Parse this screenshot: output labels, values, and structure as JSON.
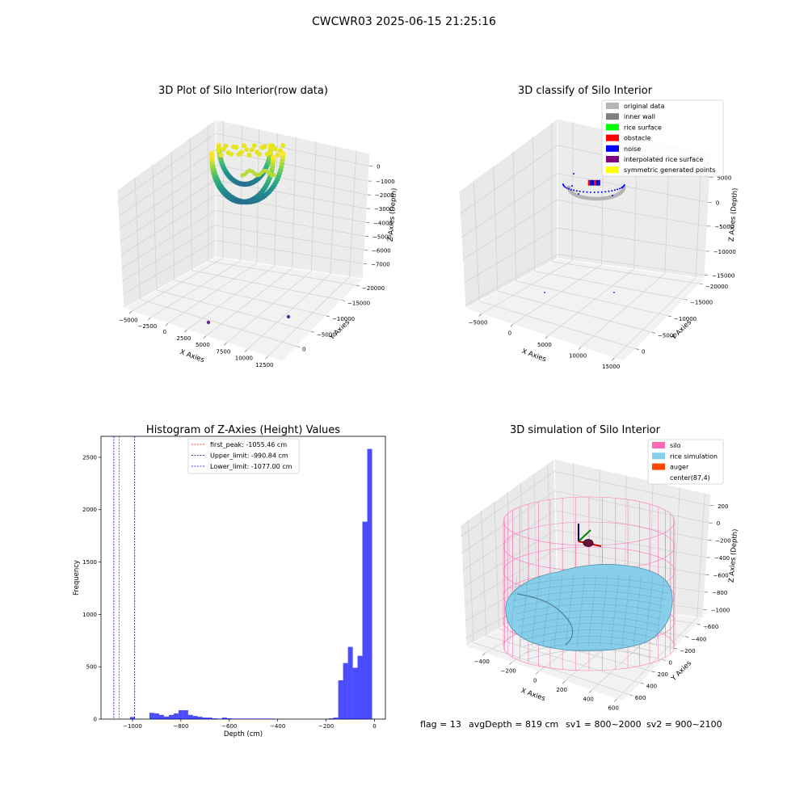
{
  "page": {
    "suptitle": "CWCWR03 2025-06-15 21:25:16",
    "footer": {
      "flag": "flag = 13",
      "avg": "avgDepth = 819 cm",
      "sv1": "sv1 = 800~2000",
      "sv2": "sv2 = 900~2100"
    }
  },
  "panels": {
    "raw": {
      "title": "3D Plot of Silo Interior(row data)",
      "xlabel": "X Axies",
      "ylabel": "Y Axies",
      "zlabel": "Z Axies (Depth)",
      "xticks": [
        "−5000",
        "−2500",
        "0",
        "2500",
        "5000",
        "7500",
        "10000",
        "12500"
      ],
      "yticks": [
        "0",
        "−5000",
        "−10000",
        "−15000",
        "−20000"
      ],
      "zticks": [
        "0",
        "−1000",
        "−2000",
        "−3000",
        "−4000",
        "−5000",
        "−6000",
        "−7000"
      ]
    },
    "classify": {
      "title": "3D classify of Silo Interior",
      "xlabel": "X Axies",
      "ylabel": "Y Axies",
      "zlabel": "Z Axies (Depth)",
      "xticks": [
        "−5000",
        "0",
        "5000",
        "10000",
        "15000"
      ],
      "yticks": [
        "0",
        "−5000",
        "−10000",
        "−15000",
        "−20000"
      ],
      "zticks": [
        "5000",
        "0",
        "−5000",
        "−10000",
        "−15000"
      ],
      "legend": [
        {
          "label": "original data",
          "color": "#b4b4b4"
        },
        {
          "label": "inner wall",
          "color": "#808080"
        },
        {
          "label": "rice surface",
          "color": "#00ff00"
        },
        {
          "label": "obstacle",
          "color": "#ff0000"
        },
        {
          "label": "noise",
          "color": "#0000ff"
        },
        {
          "label": "interpolated rice surface",
          "color": "#800080"
        },
        {
          "label": "symmetric generated points",
          "color": "#ffff00"
        }
      ]
    },
    "sim": {
      "title": "3D simulation of Silo Interior",
      "xlabel": "X Axies",
      "ylabel": "Y Axies",
      "zlabel": "Z Axies (Depth)",
      "xticks": [
        "−400",
        "−200",
        "0",
        "200",
        "400",
        "600"
      ],
      "yticks": [
        "600",
        "400",
        "200",
        "0",
        "−200",
        "−400",
        "−600"
      ],
      "zticks": [
        "200",
        "0",
        "−200",
        "−400",
        "−600",
        "−800",
        "−1000"
      ],
      "legend": [
        {
          "label": "silo",
          "color": "#ff69b4"
        },
        {
          "label": "rice simulation",
          "color": "#87ceeb"
        },
        {
          "label": "auger",
          "color": "#ff4500"
        },
        {
          "label": "center(87,4)",
          "color": "#ffffff"
        }
      ]
    }
  },
  "chart_data": [
    {
      "type": "scatter",
      "title": "3D Plot of Silo Interior(row data)",
      "xlabel": "X Axies",
      "ylabel": "Y Axies",
      "zlabel": "Z Axies (Depth)",
      "xlim": [
        -5000,
        13000
      ],
      "ylim": [
        -20000,
        1000
      ],
      "zlim": [
        -7500,
        500
      ],
      "colormap": "viridis (by depth)",
      "series": [
        {
          "points": [
            {
              "x": 0,
              "y": -2000,
              "z": -1500
            },
            {
              "x": 5000,
              "y": -2000,
              "z": -1500
            },
            {
              "x": 2500,
              "y": -2000,
              "z": -4500
            },
            {
              "x": 7000,
              "y": -20000,
              "z": -7500
            },
            {
              "x": 10000,
              "y": -10000,
              "z": -7500
            }
          ]
        }
      ]
    },
    {
      "type": "scatter",
      "title": "3D classify of Silo Interior",
      "xlabel": "X Axies",
      "ylabel": "Y Axies",
      "zlabel": "Z Axies (Depth)",
      "xlim": [
        -7000,
        16000
      ],
      "ylim": [
        -20000,
        1000
      ],
      "zlim": [
        -15000,
        5000
      ],
      "series": [
        {
          "name": "original data",
          "points": [
            {
              "x": 0,
              "y": -2000,
              "z": -1500
            }
          ]
        },
        {
          "name": "obstacle",
          "points": [
            {
              "x": 2500,
              "y": -2500,
              "z": -300
            }
          ]
        },
        {
          "name": "noise",
          "points": [
            {
              "x": 2500,
              "y": -2500,
              "z": -300
            },
            {
              "x": 6000,
              "y": -18000,
              "z": -15000
            },
            {
              "x": 13000,
              "y": -8000,
              "z": -15000
            }
          ]
        }
      ]
    },
    {
      "type": "bar",
      "title": "Histogram of Z-Axies (Height) Values",
      "xlabel": "Depth (cm)",
      "ylabel": "Frequency",
      "xlim": [
        -1130,
        45
      ],
      "ylim": [
        0,
        2700
      ],
      "xticks": [
        "−1000",
        "−800",
        "−600",
        "−400",
        "−200",
        "0"
      ],
      "yticks": [
        "0",
        "500",
        "1000",
        "1500",
        "2000",
        "2500"
      ],
      "bin_width": 20,
      "bins": [
        {
          "x": -1000,
          "y": 20
        },
        {
          "x": -980,
          "y": 2
        },
        {
          "x": -960,
          "y": 0
        },
        {
          "x": -940,
          "y": 0
        },
        {
          "x": -920,
          "y": 60
        },
        {
          "x": -900,
          "y": 55
        },
        {
          "x": -880,
          "y": 40
        },
        {
          "x": -860,
          "y": 25
        },
        {
          "x": -840,
          "y": 40
        },
        {
          "x": -820,
          "y": 55
        },
        {
          "x": -800,
          "y": 85
        },
        {
          "x": -780,
          "y": 85
        },
        {
          "x": -760,
          "y": 40
        },
        {
          "x": -740,
          "y": 30
        },
        {
          "x": -720,
          "y": 22
        },
        {
          "x": -700,
          "y": 15
        },
        {
          "x": -680,
          "y": 15
        },
        {
          "x": -660,
          "y": 8
        },
        {
          "x": -640,
          "y": 5
        },
        {
          "x": -620,
          "y": 15
        },
        {
          "x": -600,
          "y": 8
        },
        {
          "x": -580,
          "y": 5
        },
        {
          "x": -560,
          "y": 5
        },
        {
          "x": -540,
          "y": 5
        },
        {
          "x": -520,
          "y": 5
        },
        {
          "x": -500,
          "y": 5
        },
        {
          "x": -480,
          "y": 5
        },
        {
          "x": -460,
          "y": 5
        },
        {
          "x": -440,
          "y": 5
        },
        {
          "x": -420,
          "y": 5
        },
        {
          "x": -180,
          "y": 8
        },
        {
          "x": -160,
          "y": 15
        },
        {
          "x": -140,
          "y": 370
        },
        {
          "x": -120,
          "y": 535
        },
        {
          "x": -100,
          "y": 690
        },
        {
          "x": -80,
          "y": 490
        },
        {
          "x": -60,
          "y": 605
        },
        {
          "x": -40,
          "y": 1885
        },
        {
          "x": -20,
          "y": 2580
        }
      ],
      "lines": [
        {
          "label": "first_peak: -1055.46 cm",
          "x": -1055.46,
          "color": "#ff0000"
        },
        {
          "label": "Upper_limit: -990.84 cm",
          "x": -990.84,
          "color": "#000080"
        },
        {
          "label": "Lower_limit: -1077.00 cm",
          "x": -1077.0,
          "color": "#0000ff"
        }
      ]
    },
    {
      "type": "surface",
      "title": "3D simulation of Silo Interior",
      "xlabel": "X Axies",
      "ylabel": "Y Axies",
      "zlabel": "Z Axies (Depth)",
      "xlim": [
        -550,
        700
      ],
      "ylim": [
        -650,
        650
      ],
      "zlim": [
        -1000,
        300
      ],
      "series": [
        {
          "name": "silo",
          "color": "#ff69b4"
        },
        {
          "name": "rice simulation",
          "color": "#87ceeb"
        },
        {
          "name": "auger",
          "color": "#ff4500"
        }
      ]
    }
  ]
}
